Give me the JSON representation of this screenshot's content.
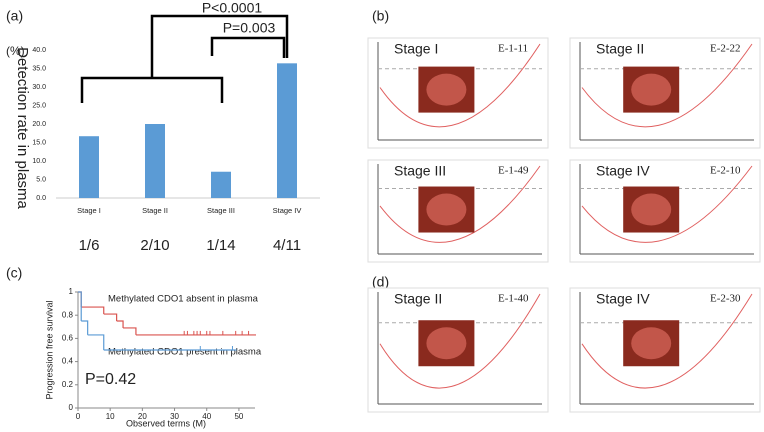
{
  "chart_data": [
    {
      "type": "bar",
      "panel_label": "(a)",
      "y_unit": "(%)",
      "y_label": "Detection rate in plasma",
      "categories": [
        "Stage I",
        "Stage II",
        "Stage III",
        "Stage IV"
      ],
      "values": [
        16.7,
        20.0,
        7.1,
        36.4
      ],
      "color": "#5b9bd5",
      "fractions": [
        "1/6",
        "2/10",
        "1/14",
        "4/11"
      ],
      "annotations": [
        "P<0.0001",
        "P=0.003"
      ],
      "ylim": [
        0,
        40
      ],
      "yticks": [
        {
          "value": 0,
          "label": "0.0"
        },
        {
          "value": 5,
          "label": "5.0"
        },
        {
          "value": 10,
          "label": "10.0"
        },
        {
          "value": 15,
          "label": "15.0"
        },
        {
          "value": 20,
          "label": "20.0"
        },
        {
          "value": 25,
          "label": "25.0"
        },
        {
          "value": 30,
          "label": "30.0"
        },
        {
          "value": 35,
          "label": "35.0"
        },
        {
          "value": 40,
          "label": "40.0"
        }
      ]
    },
    {
      "type": "line",
      "panel_label": "(c)",
      "x_label": "Observed terms (M)",
      "y_label": "Progression free survival",
      "annotation": "P=0.42",
      "xlim": [
        0,
        55
      ],
      "xticks": [
        0,
        10,
        20,
        30,
        40,
        50
      ],
      "ylim": [
        0,
        1
      ],
      "yticks": [
        0,
        0.2,
        0.4,
        0.6,
        0.8,
        1
      ],
      "series": [
        {
          "name": "Methylated CDO1 absent in plasma",
          "color": "#d9534f",
          "x": [
            0,
            1,
            8,
            12,
            14,
            18,
            55
          ],
          "values": [
            1,
            0.87,
            0.81,
            0.75,
            0.69,
            0.63,
            0.63
          ],
          "censored_x": [
            33,
            34,
            36,
            37,
            38,
            40,
            41,
            45,
            49,
            51,
            53
          ]
        },
        {
          "name": "Methylated CDO1 present in plasma",
          "color": "#5b9bd5",
          "x": [
            0,
            1,
            3,
            8,
            49
          ],
          "values": [
            1,
            0.75,
            0.63,
            0.5,
            0.5
          ],
          "censored_x": [
            38,
            48
          ]
        }
      ]
    }
  ],
  "panels": [
    {
      "label": "(b)",
      "plots": [
        {
          "stage": "Stage I",
          "sample": "E-1-11"
        },
        {
          "stage": "Stage II",
          "sample": "E-2-22"
        },
        {
          "stage": "Stage III",
          "sample": "E-1-49"
        },
        {
          "stage": "Stage IV",
          "sample": "E-2-10"
        }
      ]
    },
    {
      "label": "(d)",
      "plots": [
        {
          "stage": "Stage II",
          "sample": "E-1-40"
        },
        {
          "stage": "Stage IV",
          "sample": "E-2-30"
        }
      ]
    }
  ]
}
